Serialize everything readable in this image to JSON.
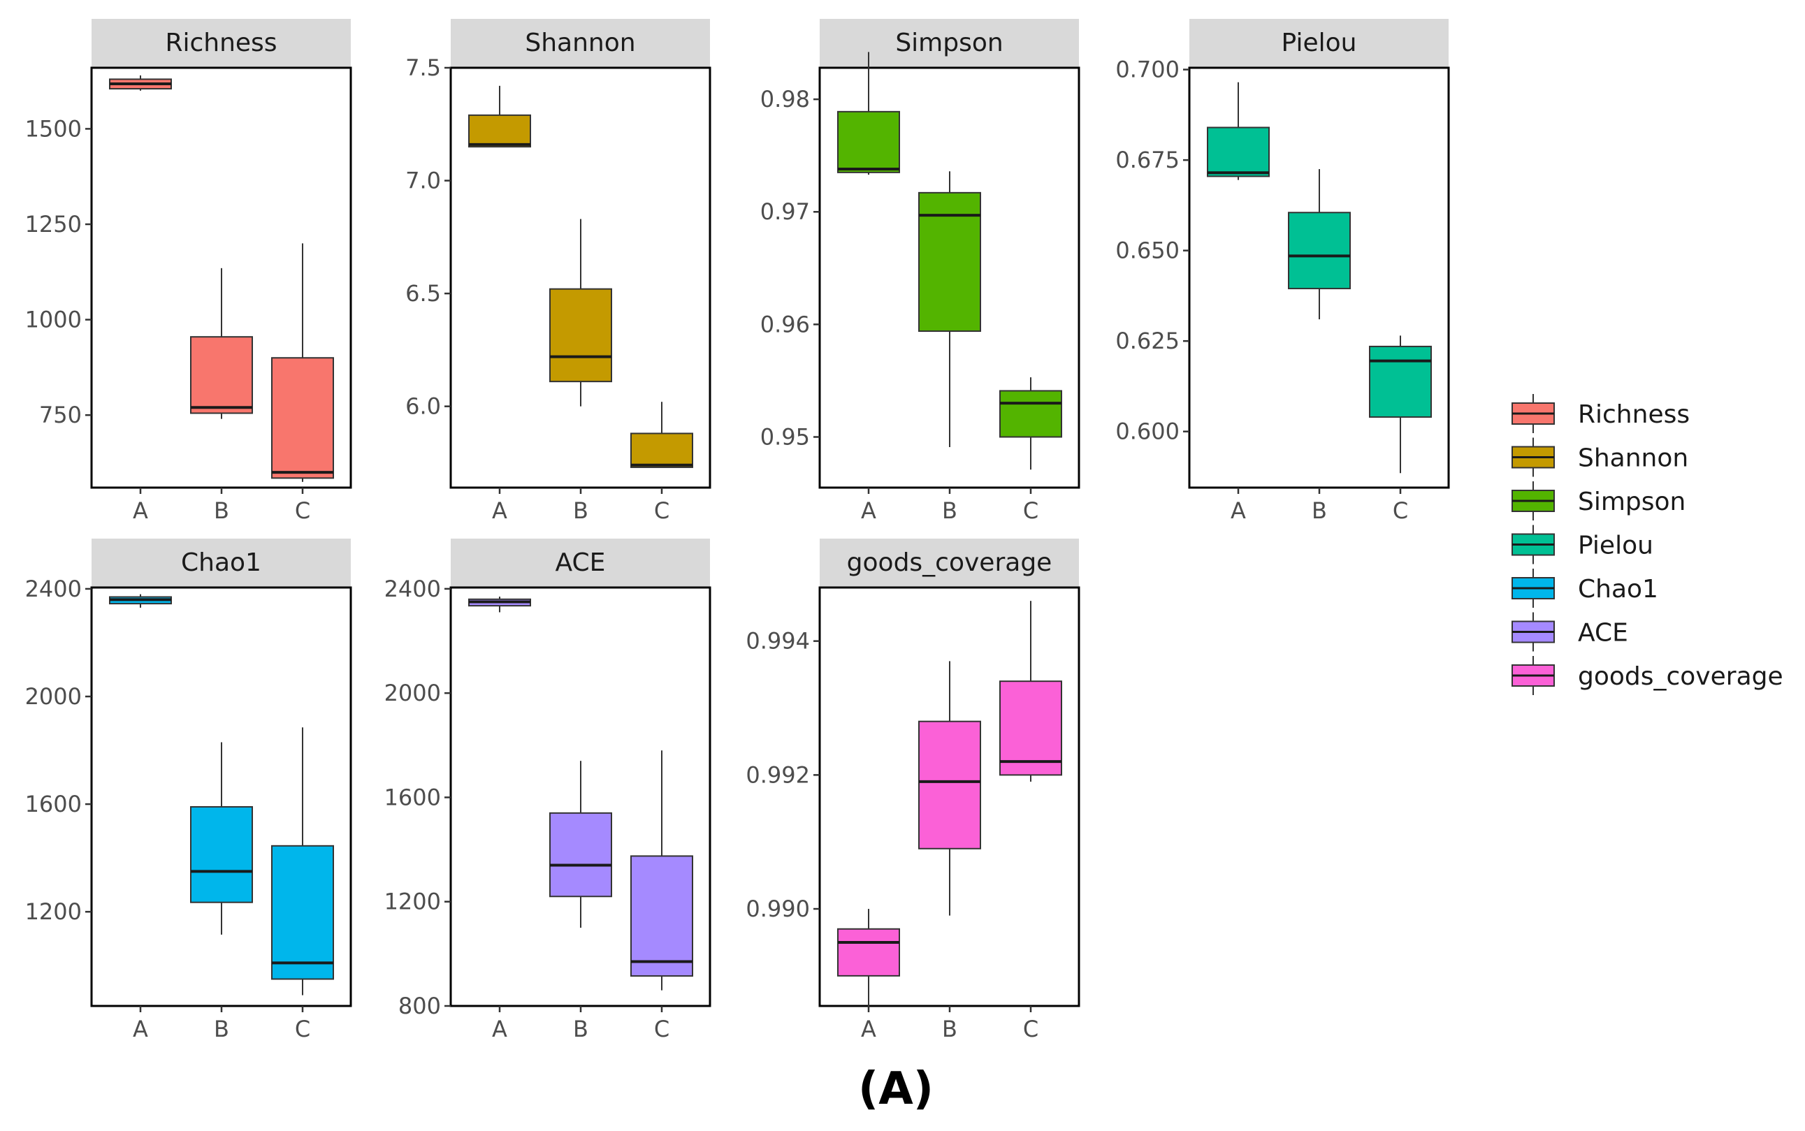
{
  "figure": {
    "caption": "(A)"
  },
  "chart_data": {
    "type": "boxplot",
    "facet_layout": "facet_wrap, 2 rows x 4 columns, free y scales",
    "categories": [
      "A",
      "B",
      "C"
    ],
    "legend": {
      "position": "right",
      "entries": [
        "Richness",
        "Shannon",
        "Simpson",
        "Pielou",
        "Chao1",
        "ACE",
        "goods_coverage"
      ]
    },
    "grid": false,
    "panels": [
      {
        "title": "Richness",
        "color": "#F8766D",
        "ylim": [
          560,
          1660
        ],
        "yticks": [
          750,
          1000,
          1250,
          1500
        ],
        "ytick_labels": [
          "750",
          "1000",
          "1250",
          "1500"
        ],
        "boxes": [
          {
            "x": "A",
            "min": 1600,
            "q1": 1605,
            "median": 1618,
            "q3": 1630,
            "max": 1640
          },
          {
            "x": "B",
            "min": 740,
            "q1": 755,
            "median": 770,
            "q3": 955,
            "max": 1135
          },
          {
            "x": "C",
            "min": 575,
            "q1": 585,
            "median": 600,
            "q3": 900,
            "max": 1200
          }
        ]
      },
      {
        "title": "Shannon",
        "color": "#C49A00",
        "ylim": [
          5.64,
          7.5
        ],
        "yticks": [
          6.0,
          6.5,
          7.0,
          7.5
        ],
        "ytick_labels": [
          "6.0",
          "6.5",
          "7.0",
          "7.5"
        ],
        "boxes": [
          {
            "x": "A",
            "min": 7.15,
            "q1": 7.15,
            "median": 7.16,
            "q3": 7.29,
            "max": 7.42
          },
          {
            "x": "B",
            "min": 6.0,
            "q1": 6.11,
            "median": 6.22,
            "q3": 6.52,
            "max": 6.83
          },
          {
            "x": "C",
            "min": 5.73,
            "q1": 5.73,
            "median": 5.74,
            "q3": 5.88,
            "max": 6.02
          }
        ]
      },
      {
        "title": "Simpson",
        "color": "#53B400",
        "ylim": [
          0.9455,
          0.9828
        ],
        "yticks": [
          0.95,
          0.96,
          0.97,
          0.98
        ],
        "ytick_labels": [
          "0.95",
          "0.96",
          "0.97",
          "0.98"
        ],
        "boxes": [
          {
            "x": "A",
            "min": 0.9733,
            "q1": 0.9735,
            "median": 0.9738,
            "q3": 0.9789,
            "max": 0.9842
          },
          {
            "x": "B",
            "min": 0.9491,
            "q1": 0.9594,
            "median": 0.9697,
            "q3": 0.9717,
            "max": 0.9736
          },
          {
            "x": "C",
            "min": 0.9471,
            "q1": 0.95,
            "median": 0.953,
            "q3": 0.9541,
            "max": 0.9553
          }
        ]
      },
      {
        "title": "Pielou",
        "color": "#00C094",
        "ylim": [
          0.5845,
          0.7005
        ],
        "yticks": [
          0.6,
          0.625,
          0.65,
          0.675,
          0.7
        ],
        "ytick_labels": [
          "0.600",
          "0.625",
          "0.650",
          "0.675",
          "0.700"
        ],
        "boxes": [
          {
            "x": "A",
            "min": 0.6695,
            "q1": 0.6705,
            "median": 0.6715,
            "q3": 0.684,
            "max": 0.6965
          },
          {
            "x": "B",
            "min": 0.631,
            "q1": 0.6395,
            "median": 0.6485,
            "q3": 0.6605,
            "max": 0.6725
          },
          {
            "x": "C",
            "min": 0.5885,
            "q1": 0.604,
            "median": 0.6195,
            "q3": 0.6235,
            "max": 0.6265
          }
        ]
      },
      {
        "title": "Chao1",
        "color": "#00B6EB",
        "ylim": [
          850,
          2405
        ],
        "yticks": [
          1200,
          1600,
          2000,
          2400
        ],
        "ytick_labels": [
          "1200",
          "1600",
          "2000",
          "2400"
        ],
        "boxes": [
          {
            "x": "A",
            "min": 2330,
            "q1": 2345,
            "median": 2360,
            "q3": 2370,
            "max": 2380
          },
          {
            "x": "B",
            "min": 1115,
            "q1": 1235,
            "median": 1350,
            "q3": 1590,
            "max": 1830
          },
          {
            "x": "C",
            "min": 890,
            "q1": 950,
            "median": 1010,
            "q3": 1445,
            "max": 1885
          }
        ]
      },
      {
        "title": "ACE",
        "color": "#A58AFF",
        "ylim": [
          800,
          2405
        ],
        "yticks": [
          800,
          1200,
          1600,
          2000,
          2400
        ],
        "ytick_labels": [
          "800",
          "1200",
          "1600",
          "2000",
          "2400"
        ],
        "boxes": [
          {
            "x": "A",
            "min": 2310,
            "q1": 2335,
            "median": 2350,
            "q3": 2360,
            "max": 2370
          },
          {
            "x": "B",
            "min": 1100,
            "q1": 1220,
            "median": 1340,
            "q3": 1540,
            "max": 1740
          },
          {
            "x": "C",
            "min": 860,
            "q1": 915,
            "median": 970,
            "q3": 1375,
            "max": 1780
          }
        ]
      },
      {
        "title": "goods_coverage",
        "color": "#FB61D7",
        "ylim": [
          0.98855,
          0.9948
        ],
        "yticks": [
          0.99,
          0.992,
          0.994
        ],
        "ytick_labels": [
          "0.990",
          "0.992",
          "0.994"
        ],
        "boxes": [
          {
            "x": "A",
            "min": 0.9885,
            "q1": 0.989,
            "median": 0.9895,
            "q3": 0.9897,
            "max": 0.99
          },
          {
            "x": "B",
            "min": 0.9899,
            "q1": 0.9909,
            "median": 0.9919,
            "q3": 0.9928,
            "max": 0.9937
          },
          {
            "x": "C",
            "min": 0.9919,
            "q1": 0.992,
            "median": 0.9922,
            "q3": 0.9934,
            "max": 0.9946
          }
        ]
      }
    ]
  }
}
